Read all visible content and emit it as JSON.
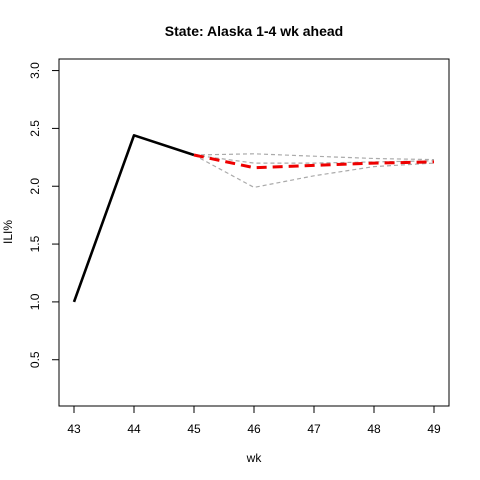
{
  "chart_data": {
    "type": "line",
    "title": "State: Alaska 1-4 wk ahead",
    "xlabel": "wk",
    "ylabel": "ILI%",
    "xlim": [
      42.75,
      49.25
    ],
    "ylim": [
      0.1,
      3.1
    ],
    "x_ticks": [
      "43",
      "44",
      "45",
      "46",
      "47",
      "48",
      "49"
    ],
    "y_ticks": [
      "0.5",
      "1.0",
      "1.5",
      "2.0",
      "2.5",
      "3.0"
    ],
    "grid": false,
    "legend": "none",
    "series": [
      {
        "style": "observed",
        "color": "#000000",
        "dash": "solid",
        "x": [
          43,
          44,
          45
        ],
        "values": [
          1.0,
          2.44,
          2.27
        ]
      },
      {
        "style": "forecast-upper",
        "color": "#aaaaaa",
        "dash": "dashed",
        "x": [
          45,
          46,
          47,
          48,
          49
        ],
        "values": [
          2.27,
          2.28,
          2.26,
          2.24,
          2.23
        ]
      },
      {
        "style": "forecast-middle",
        "color": "#aaaaaa",
        "dash": "dashed",
        "x": [
          45,
          46,
          47,
          48,
          49
        ],
        "values": [
          2.27,
          2.2,
          2.2,
          2.21,
          2.22
        ]
      },
      {
        "style": "forecast-lower",
        "color": "#aaaaaa",
        "dash": "dashed",
        "x": [
          45,
          46,
          47,
          48,
          49
        ],
        "values": [
          2.27,
          1.99,
          2.09,
          2.17,
          2.2
        ]
      },
      {
        "style": "forecast-point",
        "color": "#ee0000",
        "dash": "dashed",
        "x": [
          45,
          46,
          47,
          48,
          49
        ],
        "values": [
          2.27,
          2.16,
          2.18,
          2.2,
          2.21
        ]
      }
    ]
  }
}
